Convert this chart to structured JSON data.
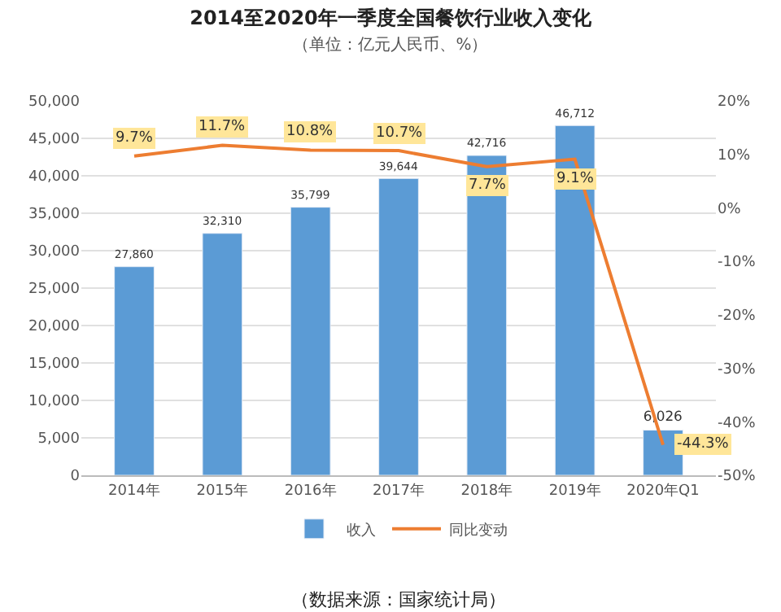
{
  "chart_data": {
    "type": "bar",
    "title": "2014至2020年一季度全国餐饮行业收入变化",
    "subtitle": "（单位：亿元人民币、%）",
    "categories": [
      "2014年",
      "2015年",
      "2016年",
      "2017年",
      "2018年",
      "2019年",
      "2020年Q1"
    ],
    "series": [
      {
        "name": "收入",
        "color": "#5b9bd5",
        "values": [
          27860,
          32310,
          35799,
          39644,
          42716,
          46712,
          6026
        ],
        "value_labels": [
          "27,860",
          "32,310",
          "35,799",
          "39,644",
          "42,716",
          "46,712",
          "6,026"
        ]
      },
      {
        "name": "同比变动",
        "type": "line",
        "axis": "y2",
        "color": "#ed7d31",
        "values": [
          9.7,
          11.7,
          10.8,
          10.7,
          7.7,
          9.1,
          -44.3
        ],
        "value_labels": [
          "9.7%",
          "11.7%",
          "10.8%",
          "10.7%",
          "7.7%",
          "9.1%",
          "-44.3%"
        ]
      }
    ],
    "ylim": [
      0,
      50000
    ],
    "yticks": [
      0,
      {
        "value": 5000,
        "label": "5,000"
      },
      {
        "value": 10000,
        "label": "10,000"
      },
      {
        "value": 15000,
        "label": "15,000"
      },
      {
        "value": 20000,
        "label": "20,000"
      },
      {
        "value": 25000,
        "label": "25,000"
      },
      {
        "value": 30000,
        "label": "30,000"
      },
      {
        "value": 35000,
        "label": "35,000"
      },
      {
        "value": 40000,
        "label": "40,000"
      },
      {
        "value": 45000,
        "label": "45,000"
      },
      {
        "value": 50000,
        "label": "50,000"
      }
    ],
    "y2lim": [
      -50,
      20
    ],
    "y2ticks": [
      {
        "value": -50,
        "label": "-50%"
      },
      {
        "value": -40,
        "label": "-40%"
      },
      {
        "value": -30,
        "label": "-30%"
      },
      {
        "value": -20,
        "label": "-20%"
      },
      {
        "value": -10,
        "label": "-10%"
      },
      {
        "value": 0,
        "label": "0%"
      },
      {
        "value": 10,
        "label": "10%"
      },
      {
        "value": 20,
        "label": "20%"
      }
    ],
    "grid": "y",
    "legend": "bottom",
    "annotations": [
      "（数据来源：国家统计局）"
    ]
  }
}
